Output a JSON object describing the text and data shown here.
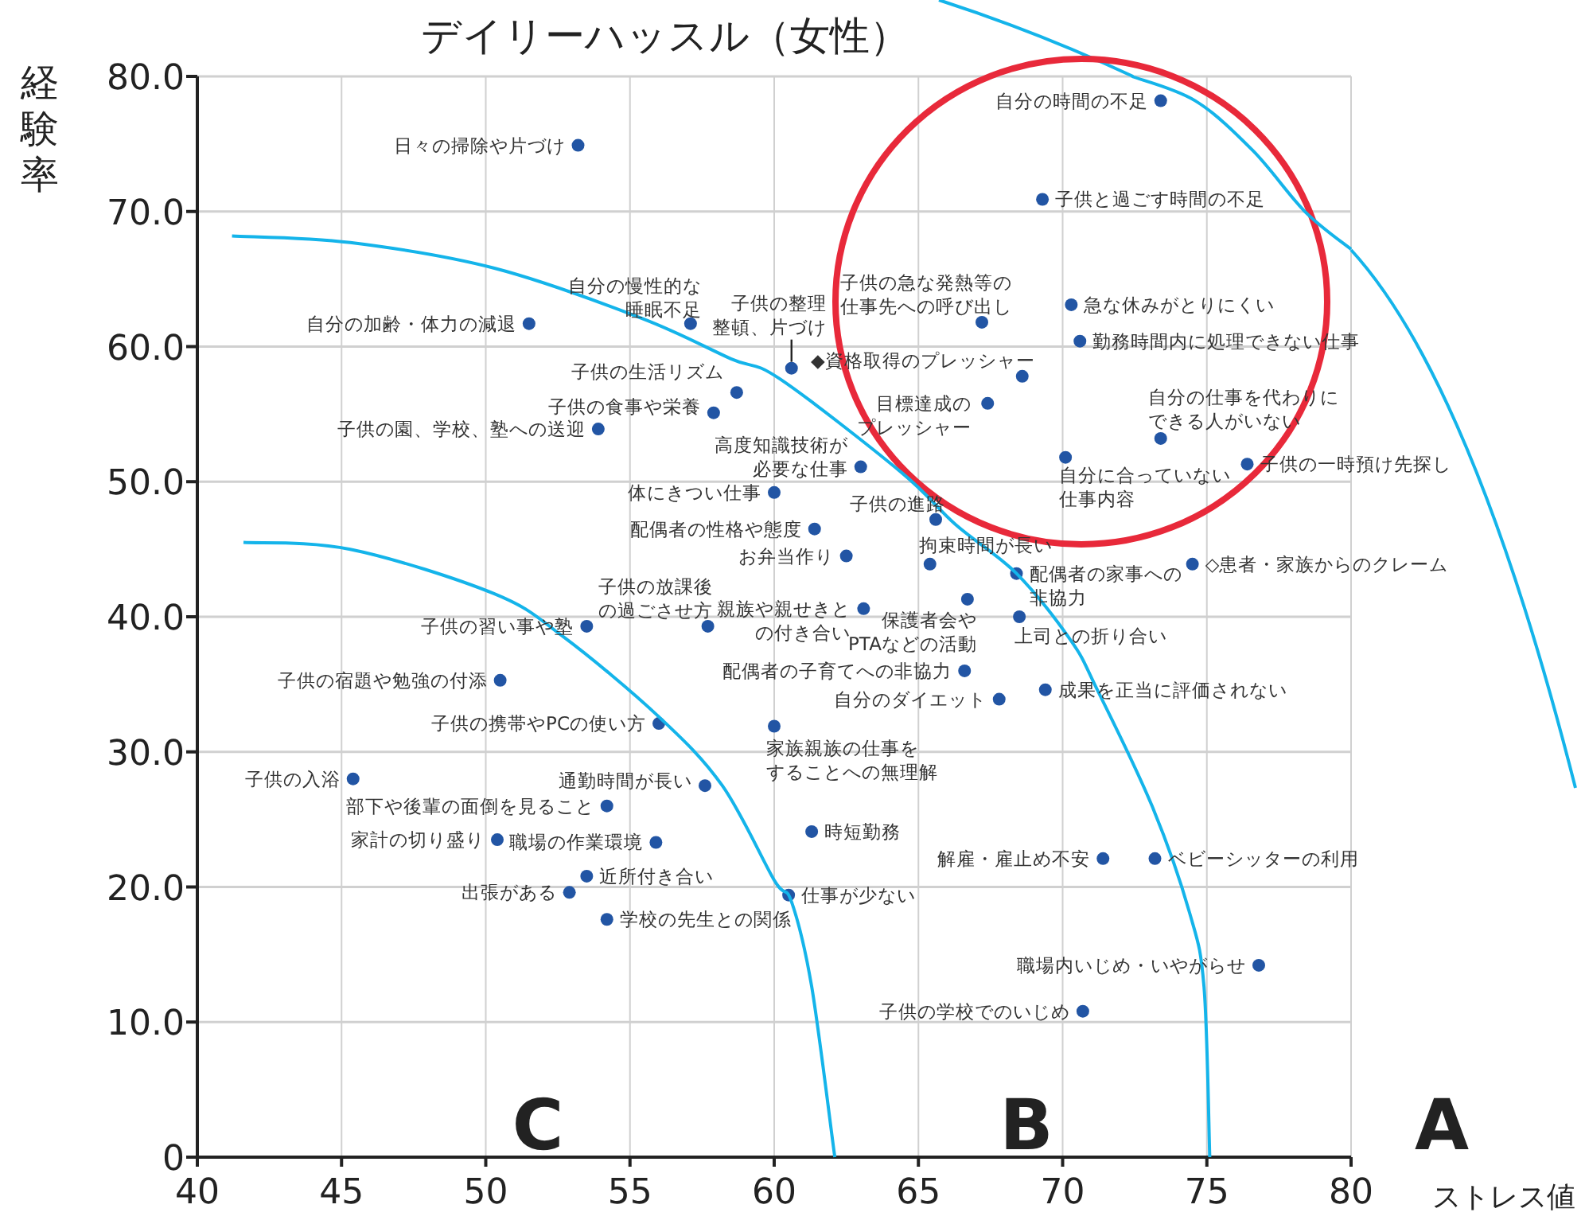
{
  "chart_data": {
    "type": "scatter",
    "title": "デイリーハッスル（女性）",
    "xlabel": "ストレス値",
    "ylabel": "経験率",
    "xlim": [
      40,
      80
    ],
    "xticks": [
      40,
      45,
      50,
      55,
      60,
      65,
      70,
      75,
      80
    ],
    "ylim": [
      0,
      80
    ],
    "yticks": [
      0,
      {
        "value": 10,
        "label": "10.0"
      },
      {
        "value": 20,
        "label": "20.0"
      },
      {
        "value": 30,
        "label": "30.0"
      },
      {
        "value": 40,
        "label": "40.0"
      },
      {
        "value": 50,
        "label": "50.0"
      },
      {
        "value": 60,
        "label": "60.0"
      },
      {
        "value": 70,
        "label": "70.0"
      },
      {
        "value": 80,
        "label": "80.0"
      }
    ],
    "grid": true,
    "marker": "circle",
    "series": [
      {
        "color": "#2255a4",
        "x": [
          53.2,
          51.5,
          57.1,
          60.6,
          58.7,
          57.9,
          53.9,
          63.0,
          60.0,
          61.4,
          62.5,
          65.6,
          65.4,
          68.4,
          66.7,
          68.5,
          63.1,
          57.7,
          53.5,
          50.5,
          66.6,
          67.8,
          69.4,
          60.0,
          56.0,
          45.4,
          57.6,
          54.2,
          50.4,
          55.9,
          61.3,
          53.5,
          52.9,
          54.2,
          60.5,
          71.4,
          73.2,
          76.8,
          70.7,
          74.5,
          73.4,
          69.3,
          67.2,
          70.3,
          70.6,
          68.6,
          67.4,
          73.4,
          70.1,
          76.4
        ],
        "values": [
          74.9,
          61.7,
          61.7,
          58.4,
          56.6,
          55.1,
          53.9,
          51.1,
          49.2,
          46.5,
          44.5,
          47.2,
          43.9,
          43.2,
          41.3,
          40.0,
          40.6,
          39.3,
          39.3,
          35.3,
          36.0,
          33.9,
          34.6,
          31.9,
          32.1,
          28.0,
          27.5,
          26.0,
          23.5,
          23.3,
          24.1,
          20.8,
          19.6,
          17.6,
          19.4,
          22.1,
          22.1,
          14.2,
          10.8,
          43.9,
          78.2,
          70.9,
          61.8,
          63.1,
          60.4,
          57.8,
          55.8,
          53.2,
          51.8,
          51.3
        ]
      },
      {
        "type": "line",
        "color": "#14b4ea",
        "marker": "none",
        "x": [
          41.6,
          45.3,
          50.3,
          52.7,
          56.0,
          58.2,
          60.0,
          60.6,
          61.3,
          62.1
        ],
        "values": [
          45.5,
          45.0,
          41.7,
          38.5,
          32.6,
          27.5,
          20.5,
          18.9,
          12.6,
          0
        ]
      },
      {
        "type": "line",
        "color": "#14b4ea",
        "marker": "none",
        "x": [
          41.2,
          45.3,
          50.3,
          55.4,
          58.5,
          60.2,
          64.4,
          66.3,
          68.4,
          70.3,
          71.2,
          73.1,
          74.4,
          74.9,
          75.1
        ],
        "values": [
          68.2,
          67.7,
          65.8,
          62.1,
          59.1,
          57.6,
          50.7,
          46.8,
          43.2,
          38.2,
          34.6,
          26.0,
          18.1,
          12.6,
          0
        ]
      },
      {
        "type": "line",
        "color": "#14b4ea",
        "marker": "none",
        "x": [
          72.4,
          74.6,
          76.6,
          78.4,
          80
        ],
        "values": [
          80,
          78.2,
          74.5,
          70,
          67.2
        ]
      }
    ],
    "annotations": [
      {
        "text": "日々の掃除や片づけ",
        "x": 53.2,
        "y": 74.9
      },
      {
        "text": "自分の加齢・体力の減退",
        "x": 51.5,
        "y": 61.7
      },
      {
        "text": "自分の慢性的な睡眠不足",
        "x": 57.1,
        "y": 61.7
      },
      {
        "text": "子供の整理整頓、片づけ",
        "x": 60.6,
        "y": 58.4
      },
      {
        "text": "子供の生活リズム",
        "x": 58.7,
        "y": 56.6
      },
      {
        "text": "子供の食事や栄養",
        "x": 57.9,
        "y": 55.1
      },
      {
        "text": "子供の園、学校、塾への送迎",
        "x": 53.9,
        "y": 53.9
      },
      {
        "text": "高度知識技術が必要な仕事",
        "x": 63.0,
        "y": 51.1
      },
      {
        "text": "体にきつい仕事",
        "x": 60.0,
        "y": 49.2
      },
      {
        "text": "配偶者の性格や態度",
        "x": 61.4,
        "y": 46.5
      },
      {
        "text": "お弁当作り",
        "x": 62.5,
        "y": 44.5
      },
      {
        "text": "子供の進路",
        "x": 65.6,
        "y": 47.2
      },
      {
        "text": "拘束時間が長い",
        "x": 65.4,
        "y": 43.9
      },
      {
        "text": "配偶者の家事への非協力",
        "x": 68.4,
        "y": 43.2
      },
      {
        "text": "保護者会やPTAなどの活動",
        "x": 66.7,
        "y": 41.3
      },
      {
        "text": "上司との折り合い",
        "x": 68.5,
        "y": 40.0
      },
      {
        "text": "親族や親せきとの付き合い",
        "x": 63.1,
        "y": 40.6
      },
      {
        "text": "子供の放課後の過ごさせ方",
        "x": 57.7,
        "y": 39.3
      },
      {
        "text": "子供の習い事や塾",
        "x": 53.5,
        "y": 39.3
      },
      {
        "text": "子供の宿題や勉強の付添",
        "x": 50.5,
        "y": 35.3
      },
      {
        "text": "配偶者の子育てへの非協力",
        "x": 66.6,
        "y": 36.0
      },
      {
        "text": "自分のダイエット",
        "x": 67.8,
        "y": 33.9
      },
      {
        "text": "成果を正当に評価されない",
        "x": 69.4,
        "y": 34.6
      },
      {
        "text": "家族親族の仕事をすることへの無理解",
        "x": 60.0,
        "y": 31.9
      },
      {
        "text": "子供の携帯やPCの使い方",
        "x": 56.0,
        "y": 32.1
      },
      {
        "text": "子供の入浴",
        "x": 45.4,
        "y": 28.0
      },
      {
        "text": "通勤時間が長い",
        "x": 57.6,
        "y": 27.5
      },
      {
        "text": "部下や後輩の面倒を見ること",
        "x": 54.2,
        "y": 26.0
      },
      {
        "text": "家計の切り盛り",
        "x": 50.4,
        "y": 23.5
      },
      {
        "text": "職場の作業環境",
        "x": 55.9,
        "y": 23.3
      },
      {
        "text": "時短勤務",
        "x": 61.3,
        "y": 24.1
      },
      {
        "text": "近所付き合い",
        "x": 53.5,
        "y": 20.8
      },
      {
        "text": "出張がある",
        "x": 52.9,
        "y": 19.6
      },
      {
        "text": "学校の先生との関係",
        "x": 54.2,
        "y": 17.6
      },
      {
        "text": "仕事が少ない",
        "x": 60.5,
        "y": 19.4
      },
      {
        "text": "解雇・雇止め不安",
        "x": 71.4,
        "y": 22.1
      },
      {
        "text": "ベビーシッターの利用",
        "x": 73.2,
        "y": 22.1
      },
      {
        "text": "職場内いじめ・いやがらせ",
        "x": 76.8,
        "y": 14.2
      },
      {
        "text": "子供の学校でのいじめ",
        "x": 70.7,
        "y": 10.8
      },
      {
        "text": "◇患者・家族からのクレーム",
        "x": 74.5,
        "y": 43.9
      },
      {
        "text": "自分の時間の不足",
        "x": 73.4,
        "y": 78.2
      },
      {
        "text": "子供と過ごす時間の不足",
        "x": 69.3,
        "y": 70.9
      },
      {
        "text": "子供の急な発熱等の仕事先への呼び出し",
        "x": 67.2,
        "y": 61.8
      },
      {
        "text": "急な休みがとりにくい",
        "x": 70.3,
        "y": 63.1
      },
      {
        "text": "勤務時間内に処理できない仕事",
        "x": 70.6,
        "y": 60.4
      },
      {
        "text": "◆資格取得のプレッシャー",
        "x": 68.6,
        "y": 57.8
      },
      {
        "text": "目標達成のプレッシャー",
        "x": 67.4,
        "y": 55.8
      },
      {
        "text": "自分の仕事を代わりにできる人がいない",
        "x": 73.4,
        "y": 53.2
      },
      {
        "text": "自分に合っていない仕事内容",
        "x": 70.1,
        "y": 51.8
      },
      {
        "text": "子供の一時預け先探し",
        "x": 76.4,
        "y": 51.3
      },
      "A",
      "B",
      "C"
    ]
  }
}
